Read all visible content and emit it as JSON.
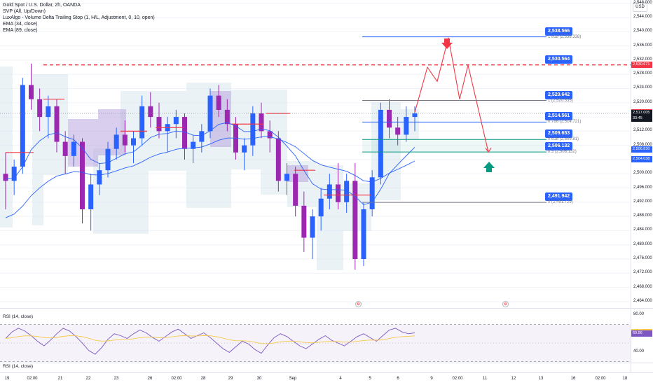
{
  "legend": {
    "title": "Gold Spot / U.S. Dollar, 2h, OANDA",
    "indicators": [
      "SVP (All, Up/Down)",
      "LuxAlgo - Volume Delta Trailing Stop (1, H/L, Adjustment, 0, 10, open)",
      "EMA (34, close)",
      "EMA (89, close)"
    ]
  },
  "currency": "USD",
  "colors": {
    "up": "#2962ff",
    "down": "#9c27b0",
    "accent": "#2962ff",
    "red": "#f23645",
    "teal": "#089981",
    "ema": "#2962ff",
    "rsi": "#7e57c2",
    "rsi_ma": "#f7c948"
  },
  "price_axis": {
    "labels": [
      "2,548.000",
      "2,544.000",
      "2,540.000",
      "2,536.000",
      "2,532.000",
      "2,528.000",
      "2,524.000",
      "2,520.000",
      "2,516.000",
      "2,512.000",
      "2,508.000",
      "2,504.000",
      "2,500.000",
      "2,496.000",
      "2,492.000",
      "2,488.000",
      "2,484.000",
      "2,480.000",
      "2,476.000",
      "2,472.000",
      "2,468.000",
      "2,464.000"
    ],
    "values": [
      2548,
      2544,
      2540,
      2536,
      2532,
      2528,
      2524,
      2520,
      2516,
      2512,
      2508,
      2504,
      2500,
      2496,
      2492,
      2488,
      2484,
      2480,
      2476,
      2472,
      2468,
      2464
    ],
    "tags": [
      {
        "text": "2,530.671",
        "value": 2530.671,
        "color": "#f23645"
      },
      {
        "text": "2,517.316",
        "value": 2517.316,
        "color": "#f23645"
      },
      {
        "text": "2,517.005",
        "value": 2517.005,
        "color": "#131722"
      },
      {
        "text": "33:45",
        "value": 2515.6,
        "color": "#131722"
      },
      {
        "text": "2,506.830",
        "value": 2506.83,
        "color": "#2962ff"
      },
      {
        "text": "2,504.038",
        "value": 2504.038,
        "color": "#2962ff"
      }
    ]
  },
  "fib": {
    "levels": [
      {
        "tag": "2,538.566",
        "label": "1.618 (2,538.338)",
        "value": 2538.566,
        "color": "#2962ff"
      },
      {
        "tag": "2,530.564",
        "label": "",
        "value": 2530.564,
        "color": "#2962ff"
      },
      {
        "tag": "2,520.642",
        "label": "1 (2,520.535)",
        "value": 2520.642,
        "color": "#787b86"
      },
      {
        "tag": "2,514.561",
        "label": "0.786 (2,514.721)",
        "value": 2514.561,
        "color": "#2962ff"
      },
      {
        "tag": "2,509.653",
        "label": "0.618 (2,509.81)",
        "value": 2509.653,
        "color": "#089981"
      },
      {
        "tag": "2,506.132",
        "label": "0.5 (2,506.132)",
        "value": 2506.132,
        "color": "#089981"
      },
      {
        "tag": "2,491.942",
        "label": "0 (2,491.729)",
        "value": 2491.942,
        "color": "#787b86"
      }
    ],
    "resistance": 2530.671
  },
  "time_axis": {
    "labels": [
      "19",
      "02:00",
      "21",
      "22",
      "23",
      "26",
      "02:00",
      "28",
      "29",
      "30",
      "Sep",
      "4",
      "5",
      "6",
      "9",
      "02:00",
      "11",
      "12",
      "13",
      "16",
      "02:00",
      "18"
    ]
  },
  "rsi": {
    "title": "RSI (14, close)",
    "footer_title": "RSI (14, close)",
    "axis_labels": [
      "80.00",
      "40.00"
    ],
    "axis_values": [
      80,
      40
    ],
    "tags": [
      {
        "text": "61.86",
        "value": 61.86,
        "color": "#f7c948"
      },
      {
        "text": "60.56",
        "value": 60.56,
        "color": "#7e57c2"
      }
    ],
    "band_upper": 70,
    "band_lower": 30
  },
  "chart_data": {
    "type": "candlestick",
    "symbol": "XAUUSD",
    "timeframe": "2h",
    "ylim": [
      2462,
      2550
    ],
    "projection_path_prices": [
      2517.3,
      2530,
      2526,
      2538.3,
      2521,
      2530.6,
      2506.1
    ],
    "candles": [
      [
        2500,
        2506,
        2490,
        2498
      ],
      [
        2498,
        2504,
        2494,
        2502
      ],
      [
        2502,
        2527,
        2500,
        2525
      ],
      [
        2525,
        2531,
        2518,
        2521
      ],
      [
        2521,
        2524,
        2512,
        2516
      ],
      [
        2516,
        2522,
        2510,
        2519
      ],
      [
        2519,
        2521,
        2506,
        2509
      ],
      [
        2509,
        2512,
        2500,
        2505
      ],
      [
        2505,
        2511,
        2502,
        2509
      ],
      [
        2509,
        2510,
        2486,
        2490
      ],
      [
        2490,
        2500,
        2484,
        2497
      ],
      [
        2497,
        2503,
        2494,
        2501
      ],
      [
        2501,
        2509,
        2499,
        2507
      ],
      [
        2507,
        2513,
        2504,
        2511
      ],
      [
        2511,
        2515,
        2506,
        2508
      ],
      [
        2508,
        2512,
        2503,
        2510
      ],
      [
        2510,
        2522,
        2508,
        2519
      ],
      [
        2519,
        2523,
        2513,
        2516
      ],
      [
        2516,
        2520,
        2510,
        2512
      ],
      [
        2512,
        2516,
        2506,
        2514
      ],
      [
        2514,
        2518,
        2510,
        2516
      ],
      [
        2516,
        2517,
        2504,
        2507
      ],
      [
        2507,
        2511,
        2503,
        2509
      ],
      [
        2509,
        2514,
        2506,
        2512
      ],
      [
        2512,
        2524,
        2510,
        2522
      ],
      [
        2522,
        2525,
        2516,
        2518
      ],
      [
        2518,
        2521,
        2512,
        2514
      ],
      [
        2514,
        2516,
        2504,
        2506
      ],
      [
        2506,
        2510,
        2501,
        2508
      ],
      [
        2508,
        2519,
        2505,
        2517
      ],
      [
        2517,
        2520,
        2510,
        2512
      ],
      [
        2512,
        2515,
        2506,
        2510
      ],
      [
        2510,
        2512,
        2495,
        2498
      ],
      [
        2498,
        2503,
        2494,
        2500
      ],
      [
        2500,
        2502,
        2488,
        2491
      ],
      [
        2491,
        2495,
        2478,
        2482
      ],
      [
        2482,
        2490,
        2476,
        2488
      ],
      [
        2488,
        2496,
        2484,
        2493
      ],
      [
        2493,
        2500,
        2490,
        2497
      ],
      [
        2497,
        2503,
        2490,
        2492
      ],
      [
        2492,
        2500,
        2489,
        2498
      ],
      [
        2498,
        2503,
        2473,
        2476
      ],
      [
        2476,
        2492,
        2474,
        2490
      ],
      [
        2490,
        2501,
        2488,
        2499
      ],
      [
        2499,
        2520,
        2497,
        2518
      ],
      [
        2518,
        2521,
        2510,
        2513
      ],
      [
        2513,
        2516,
        2508,
        2511
      ],
      [
        2511,
        2519,
        2509,
        2516
      ],
      [
        2516,
        2519,
        2512,
        2517
      ]
    ]
  }
}
